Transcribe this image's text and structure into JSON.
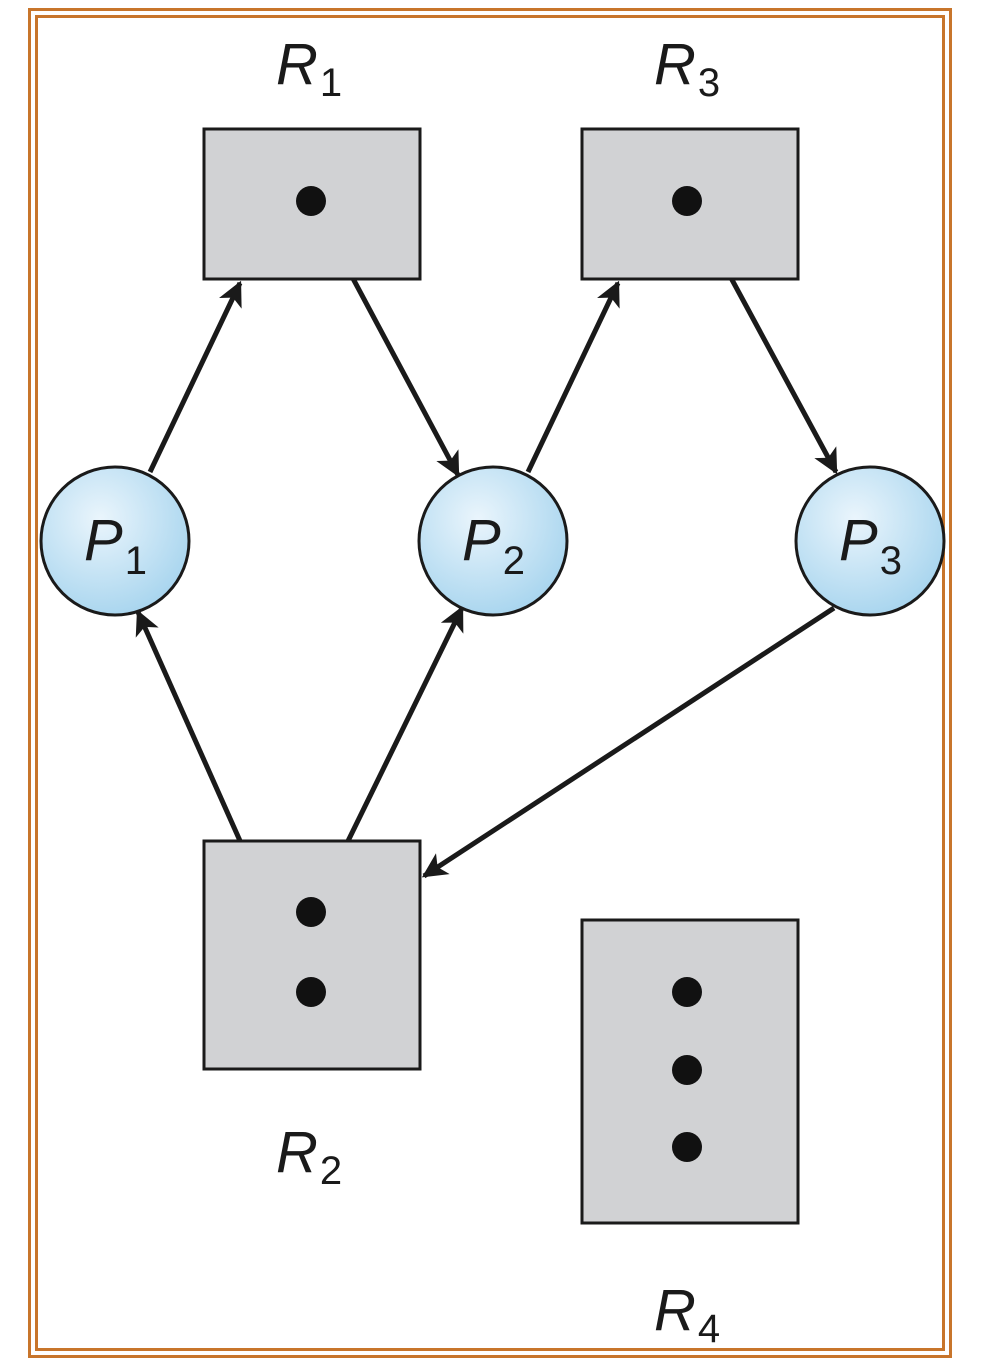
{
  "colors": {
    "frame": "#c8752b",
    "resource_fill": "#d1d2d4",
    "process_fill_center": "#e6f3fb",
    "process_fill_edge": "#a9d6ef",
    "stroke": "#1a1a1a"
  },
  "resources": [
    {
      "id": "R1",
      "letter": "R",
      "sub": "1",
      "instances": 1
    },
    {
      "id": "R2",
      "letter": "R",
      "sub": "2",
      "instances": 2
    },
    {
      "id": "R3",
      "letter": "R",
      "sub": "3",
      "instances": 1
    },
    {
      "id": "R4",
      "letter": "R",
      "sub": "4",
      "instances": 3
    }
  ],
  "processes": [
    {
      "id": "P1",
      "letter": "P",
      "sub": "1"
    },
    {
      "id": "P2",
      "letter": "P",
      "sub": "2"
    },
    {
      "id": "P3",
      "letter": "P",
      "sub": "3"
    }
  ],
  "edges": [
    {
      "from": "P1",
      "to": "R1",
      "kind": "request"
    },
    {
      "from": "R1",
      "to": "P2",
      "kind": "assignment"
    },
    {
      "from": "P2",
      "to": "R3",
      "kind": "request"
    },
    {
      "from": "R3",
      "to": "P3",
      "kind": "assignment"
    },
    {
      "from": "P3",
      "to": "R2",
      "kind": "request"
    },
    {
      "from": "R2",
      "to": "P1",
      "kind": "assignment"
    },
    {
      "from": "R2",
      "to": "P2",
      "kind": "assignment"
    }
  ]
}
